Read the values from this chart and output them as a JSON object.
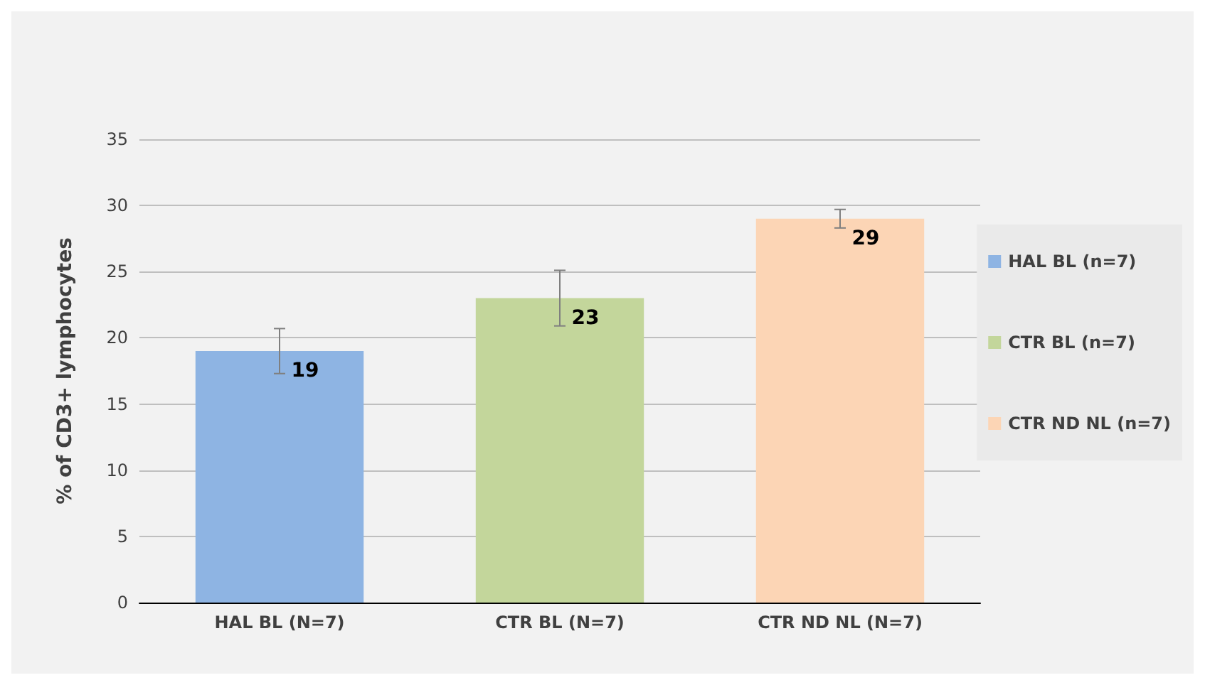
{
  "chart_data": {
    "type": "bar",
    "ylabel": "% of CD3+ lymphocytes",
    "categories": [
      "HAL BL (N=7)",
      "CTR BL (N=7)",
      "CTR ND NL (N=7)"
    ],
    "series": [
      {
        "name": "HAL BL (n=7)",
        "color": "#8eb4e3",
        "values": [
          19,
          null,
          null
        ],
        "errors": [
          1.7,
          null,
          null
        ]
      },
      {
        "name": "CTR BL (n=7)",
        "color": "#c3d69b",
        "values": [
          null,
          23,
          null
        ],
        "errors": [
          null,
          2.1,
          null
        ]
      },
      {
        "name": "CTR ND NL (n=7)",
        "color": "#fcd5b5",
        "values": [
          null,
          null,
          29
        ],
        "errors": [
          null,
          null,
          0.7
        ]
      }
    ],
    "ylim": [
      0,
      35
    ],
    "yticks": [
      0,
      5,
      10,
      15,
      20,
      25,
      30,
      35
    ],
    "grid": "y",
    "legend": "right",
    "data_labels": true
  }
}
